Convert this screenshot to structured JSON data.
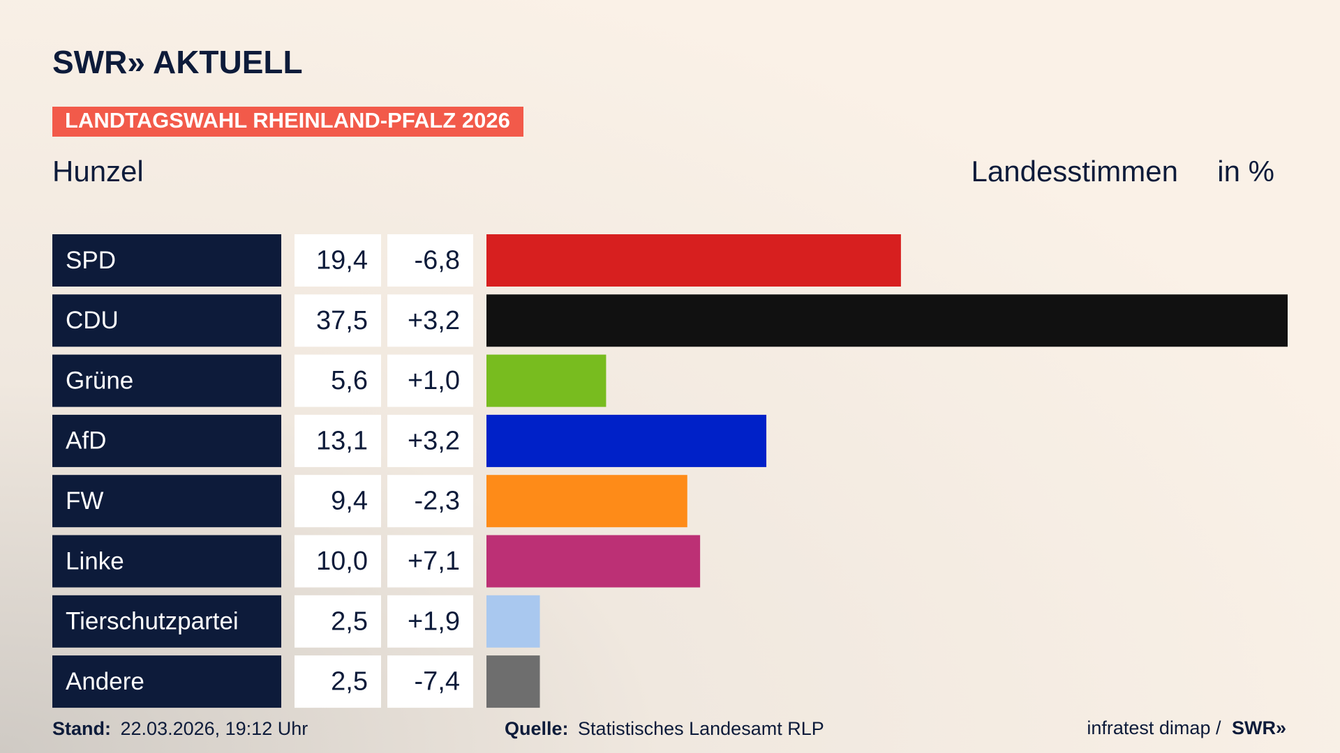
{
  "header": {
    "brand": "SWR» AKTUELL",
    "tag": "LANDTAGSWAHL RHEINLAND-PFALZ 2026"
  },
  "chart_data": {
    "type": "bar",
    "subtitle": "Hunzel",
    "measure": "Landesstimmen",
    "unit": "in %",
    "categories": [
      "SPD",
      "CDU",
      "Grüne",
      "AfD",
      "FW",
      "Linke",
      "Tierschutzpartei",
      "Andere"
    ],
    "values": [
      19.4,
      37.5,
      5.6,
      13.1,
      9.4,
      10.0,
      2.5,
      2.5
    ],
    "value_labels": [
      "19,4",
      "37,5",
      "5,6",
      "13,1",
      "9,4",
      "10,0",
      "2,5",
      "2,5"
    ],
    "changes": [
      -6.8,
      3.2,
      1.0,
      3.2,
      -2.3,
      7.1,
      1.9,
      -7.4
    ],
    "change_labels": [
      "-6,8",
      "+3,2",
      "+1,0",
      "+3,2",
      "-2,3",
      "+7,1",
      "+1,9",
      "-7,4"
    ],
    "colors": [
      "#d71f1f",
      "#111111",
      "#78bc1f",
      "#0021c8",
      "#fe8b18",
      "#bc3075",
      "#a9c8ef",
      "#6e6e6e"
    ],
    "xlim": [
      0,
      37.5
    ]
  },
  "footer": {
    "stand_label": "Stand:",
    "stand": "22.03.2026, 19:12 Uhr",
    "source_label": "Quelle:",
    "source": "Statistisches Landesamt RLP",
    "credit": "infratest dimap /",
    "credit_brand": "SWR»"
  }
}
